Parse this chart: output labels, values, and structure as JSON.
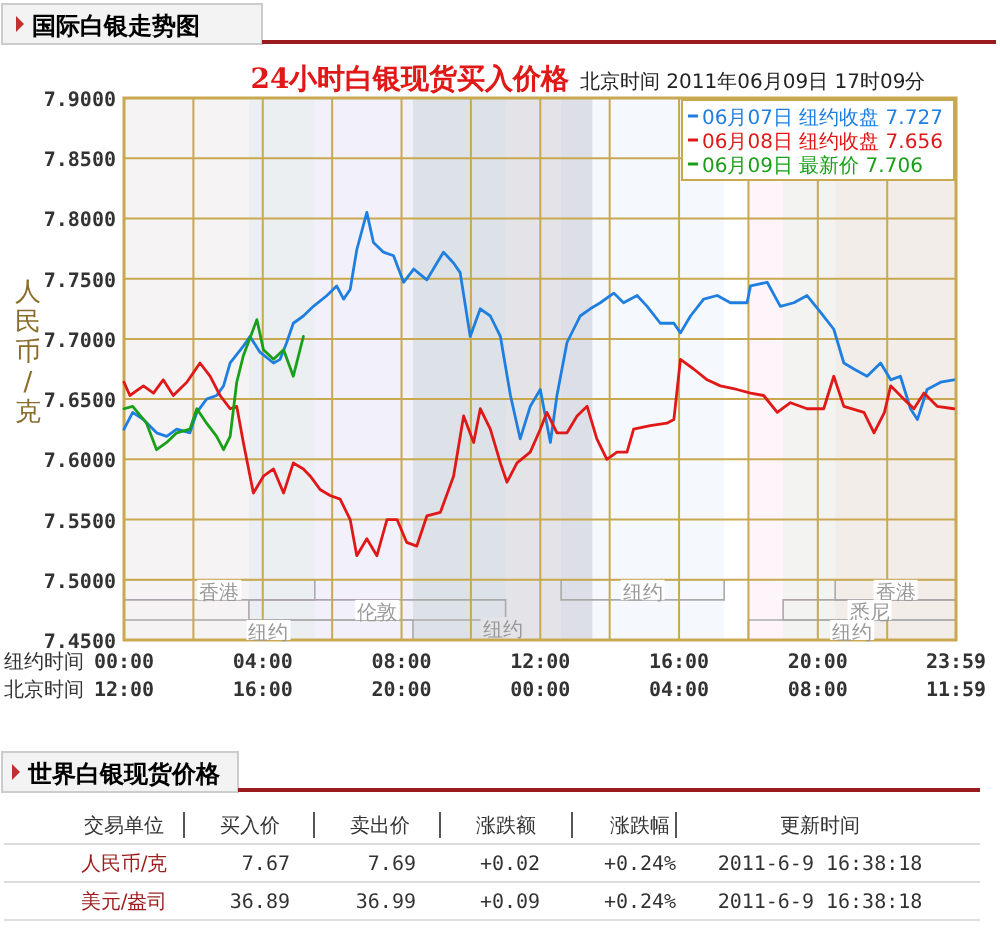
{
  "chart_data": [
    {
      "type": "line",
      "title": "国际白银走势图",
      "subtitle": "24小时白银现货买入价格",
      "ylabel": "人民币/克",
      "xlabel": "纽约时间",
      "x2label": "北京时间",
      "annotations": [
        "北京时间  2011年06月09日 17时09分"
      ],
      "xlim": [
        0,
        23.983
      ],
      "xticks": [
        {
          "value": 0,
          "label": "00:00"
        },
        {
          "value": 2,
          "label": null
        },
        {
          "value": 4,
          "label": "04:00"
        },
        {
          "value": 6,
          "label": null
        },
        {
          "value": 8,
          "label": "08:00"
        },
        {
          "value": 10,
          "label": null
        },
        {
          "value": 12,
          "label": "12:00"
        },
        {
          "value": 14,
          "label": null
        },
        {
          "value": 16,
          "label": "16:00"
        },
        {
          "value": 18,
          "label": null
        },
        {
          "value": 20,
          "label": "20:00"
        },
        {
          "value": 22,
          "label": null
        },
        {
          "value": 23.983,
          "label": "23:59"
        }
      ],
      "x2lim": [
        "2011-06-08T12:00",
        "2011-06-09T11:59"
      ],
      "x2ticks": [
        {
          "value": "2011-06-08T12:00",
          "label": "12:00"
        },
        {
          "value": "2011-06-08T16:00",
          "label": "16:00"
        },
        {
          "value": "2011-06-08T20:00",
          "label": "20:00"
        },
        {
          "value": "2011-06-09T00:00",
          "label": "00:00"
        },
        {
          "value": "2011-06-09T04:00",
          "label": "04:00"
        },
        {
          "value": "2011-06-09T08:00",
          "label": "08:00"
        },
        {
          "value": "2011-06-09T11:59",
          "label": "11:59"
        }
      ],
      "ylim": [
        7.45,
        7.9
      ],
      "yticks": [
        {
          "value": 7.45,
          "label": "7.4500"
        },
        {
          "value": 7.5,
          "label": "7.5000"
        },
        {
          "value": 7.55,
          "label": "7.5500"
        },
        {
          "value": 7.6,
          "label": "7.6000"
        },
        {
          "value": 7.65,
          "label": "7.6500"
        },
        {
          "value": 7.7,
          "label": "7.7000"
        },
        {
          "value": 7.75,
          "label": "7.7500"
        },
        {
          "value": 7.8,
          "label": "7.8000"
        },
        {
          "value": 7.85,
          "label": "7.8500"
        },
        {
          "value": 7.9,
          "label": "7.9000"
        }
      ],
      "grid": true,
      "legend": "top right",
      "bands": [
        {
          "axis": "x",
          "from": 8.33,
          "to": 13.5,
          "label": "纽约",
          "color": "#e4e4e8"
        },
        {
          "axis": "x",
          "from": 0,
          "to": 5.5,
          "label": "香港"
        },
        {
          "axis": "x",
          "from": 3.6,
          "to": 11,
          "label": "伦敦"
        },
        {
          "axis": "x",
          "from": 0,
          "to": 8.33,
          "label": "纽约"
        },
        {
          "axis": "x",
          "from": 20.5,
          "to": 23.983,
          "label": "香港"
        },
        {
          "axis": "x",
          "from": 19,
          "to": 23.983,
          "label": "悉尼"
        },
        {
          "axis": "x",
          "from": 12.6,
          "to": 17.3,
          "label": "纽约"
        },
        {
          "axis": "x",
          "from": 18,
          "to": 23.983,
          "label": "纽约"
        }
      ],
      "series": [
        {
          "name": "06月07日 纽约收盘 7.727",
          "color": "#1f7fe0",
          "x": [
            0,
            0.25,
            0.56,
            0.94,
            1.23,
            1.52,
            1.9,
            2.1,
            2.38,
            2.67,
            2.87,
            3.06,
            3.44,
            3.63,
            3.92,
            4.31,
            4.5,
            4.69,
            4.88,
            5.17,
            5.46,
            5.85,
            6.13,
            6.33,
            6.52,
            6.71,
            7.0,
            7.19,
            7.48,
            7.77,
            8.06,
            8.35,
            8.73,
            9.02,
            9.21,
            9.5,
            9.69,
            9.98,
            10.27,
            10.56,
            10.85,
            11.14,
            11.42,
            11.71,
            12.0,
            12.29,
            12.48,
            12.77,
            13.15,
            13.44,
            13.73,
            14.12,
            14.4,
            14.79,
            15.08,
            15.46,
            15.85,
            16.04,
            16.33,
            16.71,
            17.1,
            17.48,
            17.96,
            18.06,
            18.54,
            18.92,
            19.31,
            19.69,
            20.08,
            20.46,
            20.75,
            21.04,
            21.42,
            21.81,
            22.1,
            22.38,
            22.67,
            22.87,
            23.15,
            23.54,
            23.92
          ],
          "values": [
            7.625,
            7.639,
            7.633,
            7.622,
            7.619,
            7.625,
            7.622,
            7.639,
            7.65,
            7.653,
            7.661,
            7.68,
            7.694,
            7.702,
            7.689,
            7.68,
            7.683,
            7.697,
            7.713,
            7.719,
            7.727,
            7.736,
            7.744,
            7.733,
            7.741,
            7.774,
            7.805,
            7.78,
            7.772,
            7.769,
            7.747,
            7.758,
            7.749,
            7.763,
            7.772,
            7.763,
            7.755,
            7.702,
            7.725,
            7.719,
            7.702,
            7.653,
            7.617,
            7.644,
            7.658,
            7.614,
            7.653,
            7.697,
            7.719,
            7.725,
            7.73,
            7.738,
            7.73,
            7.736,
            7.727,
            7.713,
            7.713,
            7.705,
            7.719,
            7.733,
            7.736,
            7.73,
            7.73,
            7.744,
            7.747,
            7.727,
            7.73,
            7.736,
            7.722,
            7.708,
            7.68,
            7.675,
            7.669,
            7.68,
            7.666,
            7.669,
            7.642,
            7.633,
            7.658,
            7.664,
            7.666
          ]
        },
        {
          "name": "06月08日 纽约收盘 7.656",
          "color": "#e01818",
          "x": [
            0,
            0.17,
            0.56,
            0.85,
            1.13,
            1.42,
            1.81,
            2.19,
            2.48,
            2.77,
            3.06,
            3.25,
            3.44,
            3.73,
            4.02,
            4.31,
            4.6,
            4.88,
            5.17,
            5.37,
            5.65,
            5.94,
            6.23,
            6.52,
            6.71,
            7.0,
            7.29,
            7.58,
            7.87,
            8.15,
            8.44,
            8.73,
            9.12,
            9.5,
            9.79,
            10.08,
            10.27,
            10.56,
            10.85,
            11.04,
            11.33,
            11.71,
            12.0,
            12.19,
            12.48,
            12.77,
            13.06,
            13.35,
            13.63,
            13.92,
            14.21,
            14.5,
            14.69,
            15.17,
            15.65,
            15.85,
            16.04,
            16.42,
            16.81,
            17.19,
            17.67,
            18.06,
            18.44,
            18.83,
            19.21,
            19.69,
            20.17,
            20.46,
            20.75,
            21.33,
            21.62,
            21.92,
            22.1,
            22.48,
            22.77,
            23.06,
            23.44,
            23.92
          ],
          "values": [
            7.664,
            7.653,
            7.661,
            7.655,
            7.666,
            7.653,
            7.664,
            7.68,
            7.669,
            7.653,
            7.642,
            7.644,
            7.614,
            7.572,
            7.586,
            7.592,
            7.572,
            7.597,
            7.592,
            7.586,
            7.575,
            7.57,
            7.567,
            7.55,
            7.52,
            7.534,
            7.52,
            7.55,
            7.55,
            7.531,
            7.528,
            7.553,
            7.556,
            7.586,
            7.636,
            7.614,
            7.642,
            7.625,
            7.597,
            7.581,
            7.597,
            7.606,
            7.625,
            7.639,
            7.622,
            7.622,
            7.636,
            7.644,
            7.617,
            7.6,
            7.606,
            7.606,
            7.625,
            7.628,
            7.63,
            7.633,
            7.683,
            7.675,
            7.666,
            7.661,
            7.658,
            7.655,
            7.653,
            7.639,
            7.647,
            7.642,
            7.642,
            7.669,
            7.644,
            7.639,
            7.622,
            7.639,
            7.661,
            7.65,
            7.642,
            7.655,
            7.644,
            7.642
          ]
        },
        {
          "name": "06月09日 最新价 7.706",
          "color": "#18a018",
          "x": [
            0,
            0.25,
            0.65,
            0.94,
            1.23,
            1.52,
            1.9,
            2.1,
            2.38,
            2.67,
            2.87,
            3.06,
            3.25,
            3.44,
            3.83,
            4.02,
            4.31,
            4.6,
            4.88,
            5.17
          ],
          "values": [
            7.642,
            7.644,
            7.63,
            7.608,
            7.614,
            7.622,
            7.625,
            7.642,
            7.63,
            7.619,
            7.608,
            7.619,
            7.664,
            7.686,
            7.716,
            7.691,
            7.683,
            7.691,
            7.669,
            7.702
          ]
        }
      ]
    },
    {
      "type": "other",
      "title": "世界白银现货价格",
      "annotations": [
        "交易单位",
        "买入价",
        "卖出价",
        "涨跌额",
        "涨跌幅",
        "更新时间",
        "人民币/克",
        "7.67",
        "7.69",
        "+0.02",
        "+0.24%",
        "2011-6-9 16:38:18",
        "美元/盎司",
        "36.89",
        "36.99",
        "+0.09",
        "+0.24%",
        "2011-6-9 16:38:18"
      ]
    }
  ]
}
